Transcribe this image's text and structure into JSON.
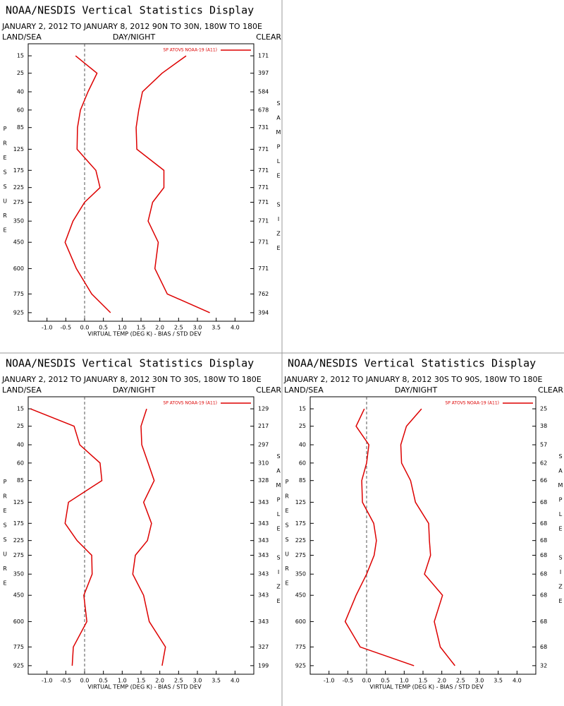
{
  "chart_data": [
    {
      "type": "line",
      "title": "NOAA/NESDIS Vertical Statistics Display",
      "subtitle": "JANUARY 2, 2012 TO JANUARY 8, 2012 90N TO 30N, 180W TO 180E",
      "left_label": "LAND/SEA",
      "center_label": "DAY/NIGHT",
      "right_label": "CLEAR",
      "ylabel": "PRESSURE",
      "y2label": "SAMPLE SIZE",
      "xlabel": "VIRTUAL TEMP (DEG K) - BIAS / STD DEV",
      "xlim": [
        -1.5,
        4.5
      ],
      "xticks": [
        {
          "value": -1,
          "label": "-1.0"
        },
        -0.5,
        {
          "value": 0,
          "label": "0.0"
        },
        0.5,
        {
          "value": 1,
          "label": "1.0"
        },
        1.5,
        {
          "value": 2,
          "label": "2.0"
        },
        2.5,
        {
          "value": 3,
          "label": "3.0"
        },
        3.5,
        {
          "value": 4,
          "label": "4.0"
        }
      ],
      "ylim": [
        10,
        1000
      ],
      "yscale_exponent": 0.3,
      "y_inverted": true,
      "yticks": [
        15,
        25,
        40,
        60,
        85,
        125,
        175,
        225,
        275,
        350,
        450,
        600,
        775,
        925
      ],
      "sample_size": [
        171,
        397,
        584,
        678,
        731,
        771,
        771,
        771,
        771,
        771,
        771,
        771,
        762,
        394
      ],
      "legend": "upper right",
      "series": [
        {
          "name": "SP ATOVS NOAA-19 (A11)",
          "color": "#dd0000",
          "bias": [
            -0.24,
            0.33,
            0.09,
            -0.11,
            -0.19,
            -0.2,
            0.3,
            0.41,
            0.0,
            -0.31,
            -0.52,
            -0.22,
            0.19,
            0.69
          ],
          "std_dev": [
            2.7,
            2.06,
            1.54,
            1.44,
            1.37,
            1.39,
            2.11,
            2.11,
            1.81,
            1.69,
            1.96,
            1.87,
            2.2,
            3.33
          ]
        }
      ]
    },
    {
      "type": "line",
      "title": "NOAA/NESDIS Vertical Statistics Display",
      "subtitle": "JANUARY 2, 2012 TO JANUARY 8, 2012 30N TO 30S, 180W TO 180E",
      "left_label": "LAND/SEA",
      "center_label": "DAY/NIGHT",
      "right_label": "CLEAR",
      "ylabel": "PRESSURE",
      "y2label": "SAMPLE SIZE",
      "xlabel": "VIRTUAL TEMP (DEG K) - BIAS / STD DEV",
      "xlim": [
        -1.5,
        4.5
      ],
      "xticks": [
        {
          "value": -1,
          "label": "-1.0"
        },
        -0.5,
        {
          "value": 0,
          "label": "0.0"
        },
        0.5,
        {
          "value": 1,
          "label": "1.0"
        },
        1.5,
        {
          "value": 2,
          "label": "2.0"
        },
        2.5,
        {
          "value": 3,
          "label": "3.0"
        },
        3.5,
        {
          "value": 4,
          "label": "4.0"
        }
      ],
      "ylim": [
        10,
        1000
      ],
      "yscale_exponent": 0.3,
      "y_inverted": true,
      "yticks": [
        15,
        25,
        40,
        60,
        85,
        125,
        175,
        225,
        275,
        350,
        450,
        600,
        775,
        925
      ],
      "sample_size": [
        129,
        217,
        297,
        310,
        328,
        343,
        343,
        343,
        343,
        343,
        343,
        343,
        327,
        199
      ],
      "legend": "upper right",
      "series": [
        {
          "name": "SP ATOVS NOAA-19 (A11)",
          "color": "#dd0000",
          "bias": [
            -1.44,
            -0.28,
            -0.13,
            0.41,
            0.46,
            -0.43,
            -0.52,
            -0.2,
            0.19,
            0.2,
            -0.02,
            0.06,
            -0.3,
            -0.33
          ],
          "std_dev": [
            1.65,
            1.5,
            1.52,
            1.69,
            1.85,
            1.57,
            1.78,
            1.67,
            1.35,
            1.28,
            1.57,
            1.72,
            2.15,
            2.06
          ]
        }
      ]
    },
    {
      "type": "line",
      "title": "NOAA/NESDIS Vertical Statistics Display",
      "subtitle": "JANUARY 2, 2012 TO JANUARY 8, 2012 30S TO 90S, 180W TO 180E",
      "left_label": "LAND/SEA",
      "center_label": "DAY/NIGHT",
      "right_label": "CLEAR",
      "ylabel": "PRESSURE",
      "y2label": "SAMPLE SIZE",
      "xlabel": "VIRTUAL TEMP (DEG K) - BIAS / STD DEV",
      "xlim": [
        -1.5,
        4.5
      ],
      "xticks": [
        {
          "value": -1,
          "label": "-1.0"
        },
        -0.5,
        {
          "value": 0,
          "label": "0.0"
        },
        0.5,
        {
          "value": 1,
          "label": "1.0"
        },
        1.5,
        {
          "value": 2,
          "label": "2.0"
        },
        2.5,
        {
          "value": 3,
          "label": "3.0"
        },
        3.5,
        {
          "value": 4,
          "label": "4.0"
        }
      ],
      "ylim": [
        10,
        1000
      ],
      "yscale_exponent": 0.3,
      "y_inverted": true,
      "yticks": [
        15,
        25,
        40,
        60,
        85,
        125,
        175,
        225,
        275,
        350,
        450,
        600,
        775,
        925
      ],
      "sample_size": [
        25,
        38,
        57,
        62,
        66,
        68,
        68,
        68,
        68,
        68,
        68,
        68,
        68,
        32
      ],
      "legend": "upper right",
      "series": [
        {
          "name": "SP ATOVS NOAA-19 (A11)",
          "color": "#dd0000",
          "bias": [
            -0.06,
            -0.28,
            0.06,
            0.0,
            -0.13,
            -0.11,
            0.19,
            0.26,
            0.2,
            0.0,
            -0.28,
            -0.57,
            -0.17,
            1.26
          ],
          "std_dev": [
            1.46,
            1.06,
            0.91,
            0.93,
            1.17,
            1.3,
            1.65,
            1.67,
            1.7,
            1.54,
            2.02,
            1.8,
            1.96,
            2.35
          ]
        }
      ]
    }
  ]
}
